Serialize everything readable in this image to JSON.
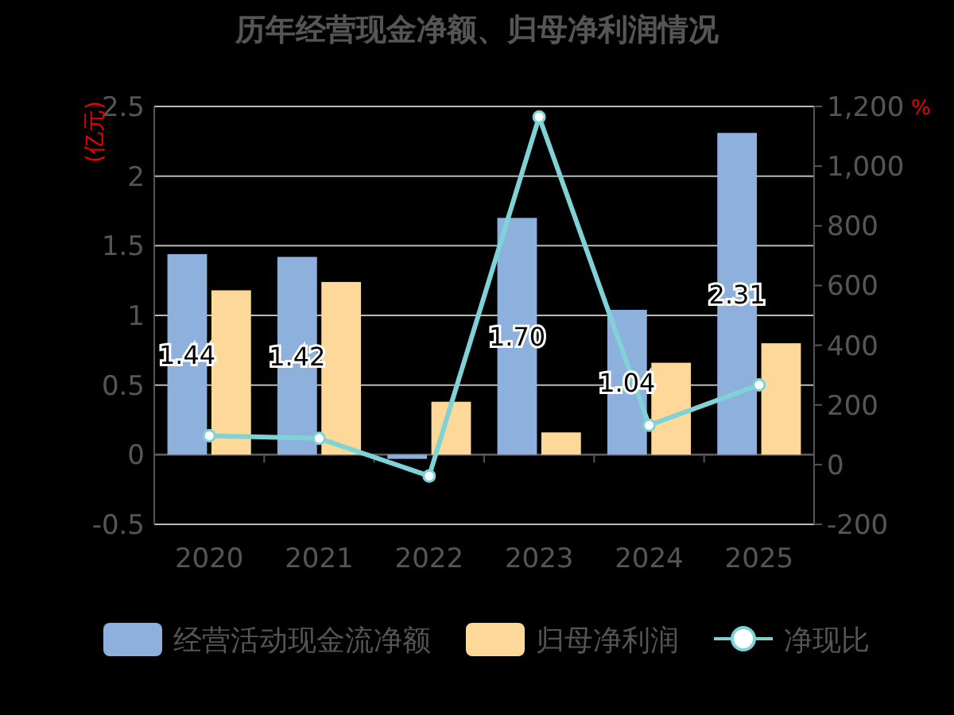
{
  "chart_data": {
    "type": "bar",
    "title": "历年经营现金净额、归母净利润情况",
    "ylabel": "(亿元)",
    "y2label": "%",
    "categories": [
      "2020",
      "2021",
      "2022",
      "2023",
      "2024",
      "2025"
    ],
    "series": [
      {
        "name": "经营活动现金流净额",
        "color": "#8eb0dd",
        "values": [
          1.44,
          1.42,
          -0.03,
          1.7,
          1.04,
          2.31
        ],
        "value_labels": [
          "1.44",
          "1.42",
          null,
          "1.70",
          "1.04",
          "2.31"
        ]
      },
      {
        "name": "归母净利润",
        "color": "#fdd898",
        "values": [
          1.18,
          1.24,
          0.38,
          0.16,
          0.66,
          0.8
        ]
      },
      {
        "name": "净现比",
        "type": "line",
        "axis": "y2",
        "color": "#7fd3d6",
        "marker": "circle",
        "values": [
          97,
          88,
          -38,
          1165,
          132,
          267
        ]
      }
    ],
    "ylim": [
      -0.5,
      2.5
    ],
    "yticks": [
      -0.5,
      0,
      0.5,
      1,
      1.5,
      2,
      2.5
    ],
    "y2lim": [
      -200,
      1200
    ],
    "y2ticks": [
      -200,
      0,
      200,
      400,
      600,
      800,
      {
        "value": 1000,
        "label": "1,000"
      },
      {
        "value": 1200,
        "label": "1,200"
      }
    ],
    "grid": "y",
    "legend": "bottom"
  }
}
